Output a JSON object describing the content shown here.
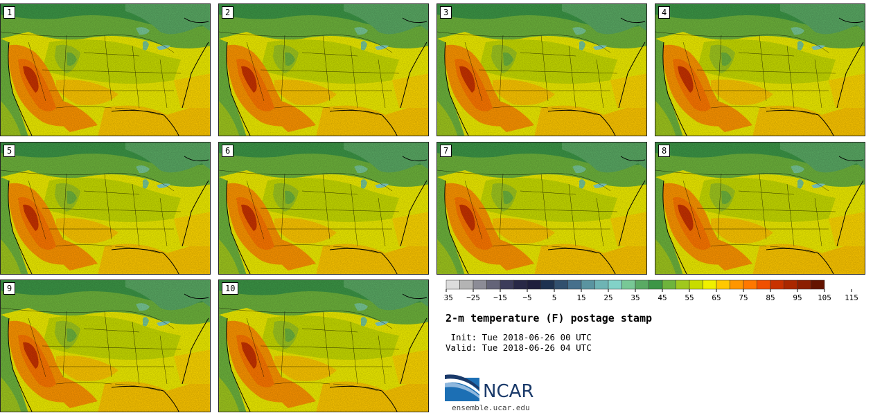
{
  "panels": [
    {
      "label": "1"
    },
    {
      "label": "2"
    },
    {
      "label": "3"
    },
    {
      "label": "4"
    },
    {
      "label": "5"
    },
    {
      "label": "6"
    },
    {
      "label": "7"
    },
    {
      "label": "8"
    },
    {
      "label": "9"
    },
    {
      "label": "10"
    }
  ],
  "colorbar": {
    "colors": [
      "#dcdcdc",
      "#b4b4b4",
      "#8c8c96",
      "#646478",
      "#3c3c5a",
      "#282846",
      "#1e1e3c",
      "#1e3250",
      "#32506e",
      "#46708c",
      "#5a94a0",
      "#6eb4b4",
      "#82d2c8",
      "#78c896",
      "#5aaa64",
      "#3c9646",
      "#6eb43c",
      "#a0c81e",
      "#c8dc00",
      "#f0f000",
      "#ffc800",
      "#ff9600",
      "#ff7800",
      "#f05000",
      "#c83200",
      "#aa2800",
      "#8c1e00",
      "#641400"
    ],
    "tick_labels": [
      "−35",
      "−25",
      "−15",
      "−5",
      "5",
      "15",
      "25",
      "35",
      "45",
      "55",
      "65",
      "75",
      "85",
      "95",
      "105",
      "115"
    ]
  },
  "title": "2-m temperature (F) postage stamp",
  "init": " Init: Tue 2018-06-26 00 UTC",
  "valid": "Valid: Tue 2018-06-26 04 UTC",
  "logo_text": "NCAR",
  "url": "ensemble.ucar.edu"
}
